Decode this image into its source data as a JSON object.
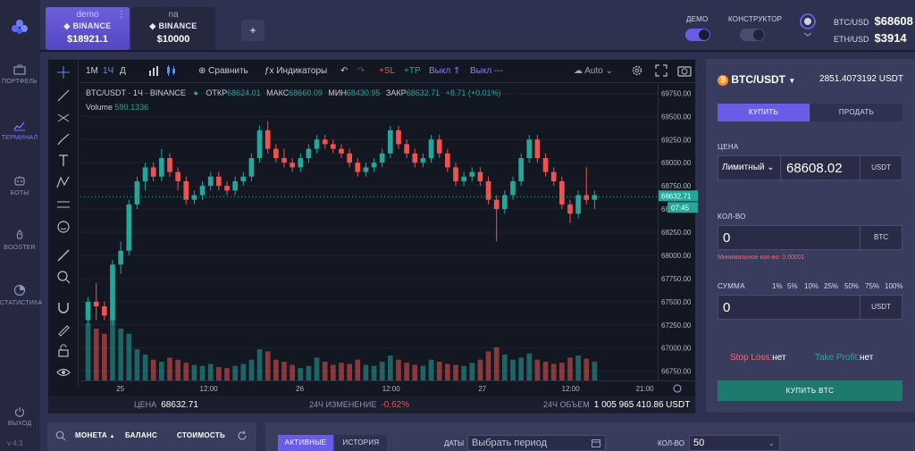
{
  "sidebar": {
    "items": [
      {
        "label": "ПОРТФЕЛЬ",
        "icon": "briefcase-icon"
      },
      {
        "label": "ТЕРМИНАЛ",
        "icon": "chart-line-icon",
        "active": true
      },
      {
        "label": "БОТЫ",
        "icon": "robot-icon"
      },
      {
        "label": "BOOSTER",
        "icon": "rocket-icon"
      },
      {
        "label": "СТАТИСТИКА",
        "icon": "pie-chart-icon"
      }
    ],
    "logout": "ВЫХОД",
    "version": "v 4.3"
  },
  "accounts": [
    {
      "name": "demo",
      "exchange": "BINANCE",
      "balance": "$18921.1",
      "active": true
    },
    {
      "name": "na",
      "exchange": "BINANCE",
      "balance": "$10000",
      "active": false
    }
  ],
  "topbar": {
    "add_label": "+",
    "demo_label": "ДЕМО",
    "constructor_label": "КОНСТРУКТОР",
    "demo_on": true,
    "constructor_on": false,
    "tickers": [
      {
        "pair": "BTC/USD",
        "price": "$68608"
      },
      {
        "pair": "ETH/USD",
        "price": "$3914"
      }
    ]
  },
  "chart_toolbar": {
    "intervals": [
      "1М",
      "1Ч",
      "Д"
    ],
    "active_interval": "1Ч",
    "compare": "Сравнить",
    "indicators": "Индикаторы",
    "sl": "+SL",
    "tp": "+TP",
    "off_up": "Выкл ⇑",
    "off_dash": "Выкл ---",
    "auto": "Auto"
  },
  "chart_legend": {
    "symbol": "BTC/USDT · 1Ч · BINANCE",
    "open_label": "ОТКР",
    "open": "68624.01",
    "high_label": "МАКС",
    "high": "68660.09",
    "low_label": "МИН",
    "low": "68430.95",
    "close_label": "ЗАКР",
    "close": "68632.71",
    "change": "+8.71 (+0.01%)",
    "volume_label": "Volume",
    "volume": "590.1336",
    "last_price_tag": "68632.71",
    "countdown_tag": "07:45"
  },
  "chart_data": {
    "type": "candlestick",
    "x_ticks": [
      "25",
      "12:00",
      "26",
      "12:00",
      "27",
      "12:00",
      "21:00"
    ],
    "y_ticks": [
      "69750.00",
      "69500.00",
      "69250.00",
      "69000.00",
      "68750.00",
      "68500.00",
      "68250.00",
      "68000.00",
      "67750.00",
      "67500.00",
      "67250.00",
      "67000.00",
      "66750.00"
    ],
    "ylim": [
      66650,
      69850
    ],
    "candles": [
      [
        67300,
        67550,
        67250,
        67500
      ],
      [
        67500,
        67700,
        67300,
        67450
      ],
      [
        67450,
        67500,
        67300,
        67350
      ],
      [
        67300,
        67950,
        67250,
        67900
      ],
      [
        67900,
        68150,
        67800,
        68050
      ],
      [
        68050,
        68600,
        68000,
        68550
      ],
      [
        68550,
        68850,
        68500,
        68800
      ],
      [
        68800,
        69000,
        68700,
        68950
      ],
      [
        68950,
        69000,
        68800,
        68850
      ],
      [
        68850,
        69150,
        68800,
        69050
      ],
      [
        69050,
        69100,
        68850,
        68900
      ],
      [
        68900,
        68950,
        68700,
        68800
      ],
      [
        68800,
        68850,
        68550,
        68600
      ],
      [
        68600,
        68700,
        68550,
        68650
      ],
      [
        68650,
        68800,
        68600,
        68750
      ],
      [
        68750,
        68900,
        68700,
        68850
      ],
      [
        68850,
        68900,
        68700,
        68750
      ],
      [
        68750,
        68800,
        68650,
        68700
      ],
      [
        68700,
        68850,
        68650,
        68800
      ],
      [
        68800,
        68900,
        68750,
        68850
      ],
      [
        68850,
        69100,
        68800,
        69050
      ],
      [
        69050,
        69400,
        69000,
        69350
      ],
      [
        69350,
        69450,
        69100,
        69150
      ],
      [
        69150,
        69200,
        69000,
        69050
      ],
      [
        69050,
        69150,
        68950,
        69000
      ],
      [
        69000,
        69050,
        68900,
        68950
      ],
      [
        68950,
        69100,
        68900,
        69050
      ],
      [
        69050,
        69200,
        69000,
        69150
      ],
      [
        69150,
        69300,
        69100,
        69250
      ],
      [
        69250,
        69300,
        69150,
        69200
      ],
      [
        69200,
        69250,
        69100,
        69150
      ],
      [
        69150,
        69200,
        69050,
        69100
      ],
      [
        69100,
        69150,
        68950,
        69000
      ],
      [
        69000,
        69050,
        68850,
        68900
      ],
      [
        68900,
        69000,
        68850,
        68950
      ],
      [
        68950,
        69050,
        68900,
        69000
      ],
      [
        69000,
        69150,
        68950,
        69100
      ],
      [
        69100,
        69400,
        69050,
        69350
      ],
      [
        69350,
        69400,
        69150,
        69200
      ],
      [
        69200,
        69250,
        69050,
        69100
      ],
      [
        69100,
        69150,
        68950,
        69000
      ],
      [
        69000,
        69100,
        68950,
        69050
      ],
      [
        69050,
        69300,
        69000,
        69250
      ],
      [
        69250,
        69300,
        69050,
        69100
      ],
      [
        69100,
        69150,
        68900,
        68950
      ],
      [
        68950,
        69000,
        68750,
        68800
      ],
      [
        68800,
        68900,
        68750,
        68850
      ],
      [
        68850,
        68950,
        68800,
        68900
      ],
      [
        68900,
        68950,
        68750,
        68800
      ],
      [
        68800,
        68850,
        68550,
        68600
      ],
      [
        68600,
        68650,
        68150,
        68500
      ],
      [
        68500,
        68700,
        68450,
        68650
      ],
      [
        68650,
        68850,
        68600,
        68800
      ],
      [
        68800,
        69100,
        68750,
        69050
      ],
      [
        69050,
        69300,
        69000,
        69250
      ],
      [
        69250,
        69300,
        69000,
        69050
      ],
      [
        69050,
        69100,
        68850,
        68900
      ],
      [
        68900,
        68950,
        68750,
        68800
      ],
      [
        68800,
        68850,
        68500,
        68550
      ],
      [
        68550,
        68600,
        68350,
        68450
      ],
      [
        68450,
        68700,
        68400,
        68650
      ],
      [
        68650,
        68950,
        68550,
        68600
      ],
      [
        68600,
        68700,
        68500,
        68650
      ]
    ],
    "volumes": [
      0.55,
      0.5,
      0.45,
      0.6,
      0.5,
      0.45,
      0.3,
      0.25,
      0.2,
      0.18,
      0.22,
      0.2,
      0.17,
      0.15,
      0.14,
      0.16,
      0.13,
      0.12,
      0.14,
      0.16,
      0.2,
      0.3,
      0.28,
      0.2,
      0.18,
      0.15,
      0.12,
      0.14,
      0.22,
      0.18,
      0.15,
      0.17,
      0.16,
      0.2,
      0.15,
      0.14,
      0.18,
      0.24,
      0.2,
      0.17,
      0.15,
      0.14,
      0.2,
      0.18,
      0.16,
      0.15,
      0.14,
      0.17,
      0.2,
      0.28,
      0.32,
      0.25,
      0.2,
      0.22,
      0.26,
      0.2,
      0.18,
      0.16,
      0.17,
      0.22,
      0.24,
      0.21,
      0.18
    ]
  },
  "stats": {
    "price_label": "ЦЕНА",
    "price": "68632.71",
    "change_label": "24Ч ИЗМЕНЕНИЕ",
    "change": "-0.62%",
    "volume_label": "24Ч ОБЪЕМ",
    "volume": "1 005 965 410.86",
    "volume_unit": "USDT"
  },
  "order": {
    "pair": "BTC/USDT",
    "amount": "2851.4073192 USDT",
    "buy_tab": "КУПИТЬ",
    "sell_tab": "ПРОДАТЬ",
    "price_label": "ЦЕНА",
    "order_type": "Лимитный ⌄",
    "price_value": "68608.02",
    "price_unit": "USDT",
    "qty_label": "КОЛ-ВО",
    "qty_value": "0",
    "qty_unit": "BTC",
    "min_qty": "Минимальное кол-во: 0.00001",
    "sum_label": "СУММА",
    "percents": [
      "1%",
      "5%",
      "10%",
      "25%",
      "50%",
      "75%",
      "100%"
    ],
    "sum_value": "0",
    "sum_unit": "USDT",
    "stop_loss_label": "Stop Loss:",
    "stop_loss_value": "нет",
    "take_profit_label": "Take Profit:",
    "take_profit_value": "нет",
    "buy_button": "КУПИТЬ BTC"
  },
  "bottom": {
    "coin_col": "МОНЕТА",
    "balance_col": "БАЛАНС",
    "value_col": "СТОИМОСТЬ",
    "active_tab": "АКТИВНЫЕ",
    "history_tab": "ИСТОРИЯ",
    "dates_label": "ДАТЫ",
    "date_placeholder": "Выбрать период",
    "qty_label": "КОЛ-ВО",
    "qty_value": "50"
  },
  "colors": {
    "up": "#26a69a",
    "down": "#ef5350",
    "accent": "#6b5ce7"
  }
}
